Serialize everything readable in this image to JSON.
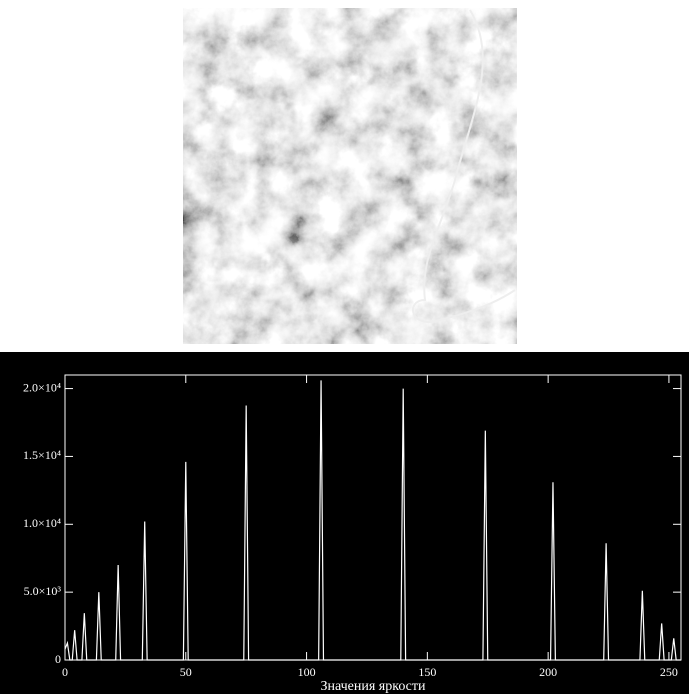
{
  "chart_data": {
    "type": "line",
    "x_label": "Значения яркости",
    "series": [
      {
        "color": "#ffffff",
        "x": [
          0,
          1,
          2,
          3,
          4,
          5,
          7,
          8,
          9,
          13,
          14,
          15,
          21,
          22,
          23,
          32,
          33,
          34,
          49,
          50,
          51,
          74,
          75,
          76,
          105,
          106,
          107,
          139,
          140,
          141,
          173,
          174,
          175,
          201,
          202,
          203,
          223,
          224,
          225,
          238,
          239,
          240,
          246,
          247,
          248,
          251,
          252,
          253,
          255
        ],
        "values": [
          800,
          1250,
          0,
          0,
          2200,
          0,
          0,
          3450,
          0,
          0,
          5000,
          0,
          0,
          7000,
          0,
          0,
          10200,
          0,
          0,
          14600,
          0,
          0,
          18750,
          0,
          0,
          20600,
          0,
          0,
          20000,
          0,
          0,
          16900,
          0,
          0,
          13100,
          0,
          0,
          8600,
          0,
          0,
          5100,
          0,
          0,
          2700,
          0,
          0,
          1600,
          0,
          0
        ]
      }
    ],
    "xlim": [
      0,
      255
    ],
    "xticks": [
      0,
      50,
      100,
      150,
      200,
      250
    ],
    "ylim": [
      0,
      21000
    ],
    "yticks": [
      0,
      {
        "value": 5000,
        "label": "5.0×10³"
      },
      {
        "value": 10000,
        "label": "1.0×10⁴"
      },
      {
        "value": 15000,
        "label": "1.5×10⁴"
      },
      {
        "value": 20000,
        "label": "2.0×10⁴"
      }
    ]
  }
}
